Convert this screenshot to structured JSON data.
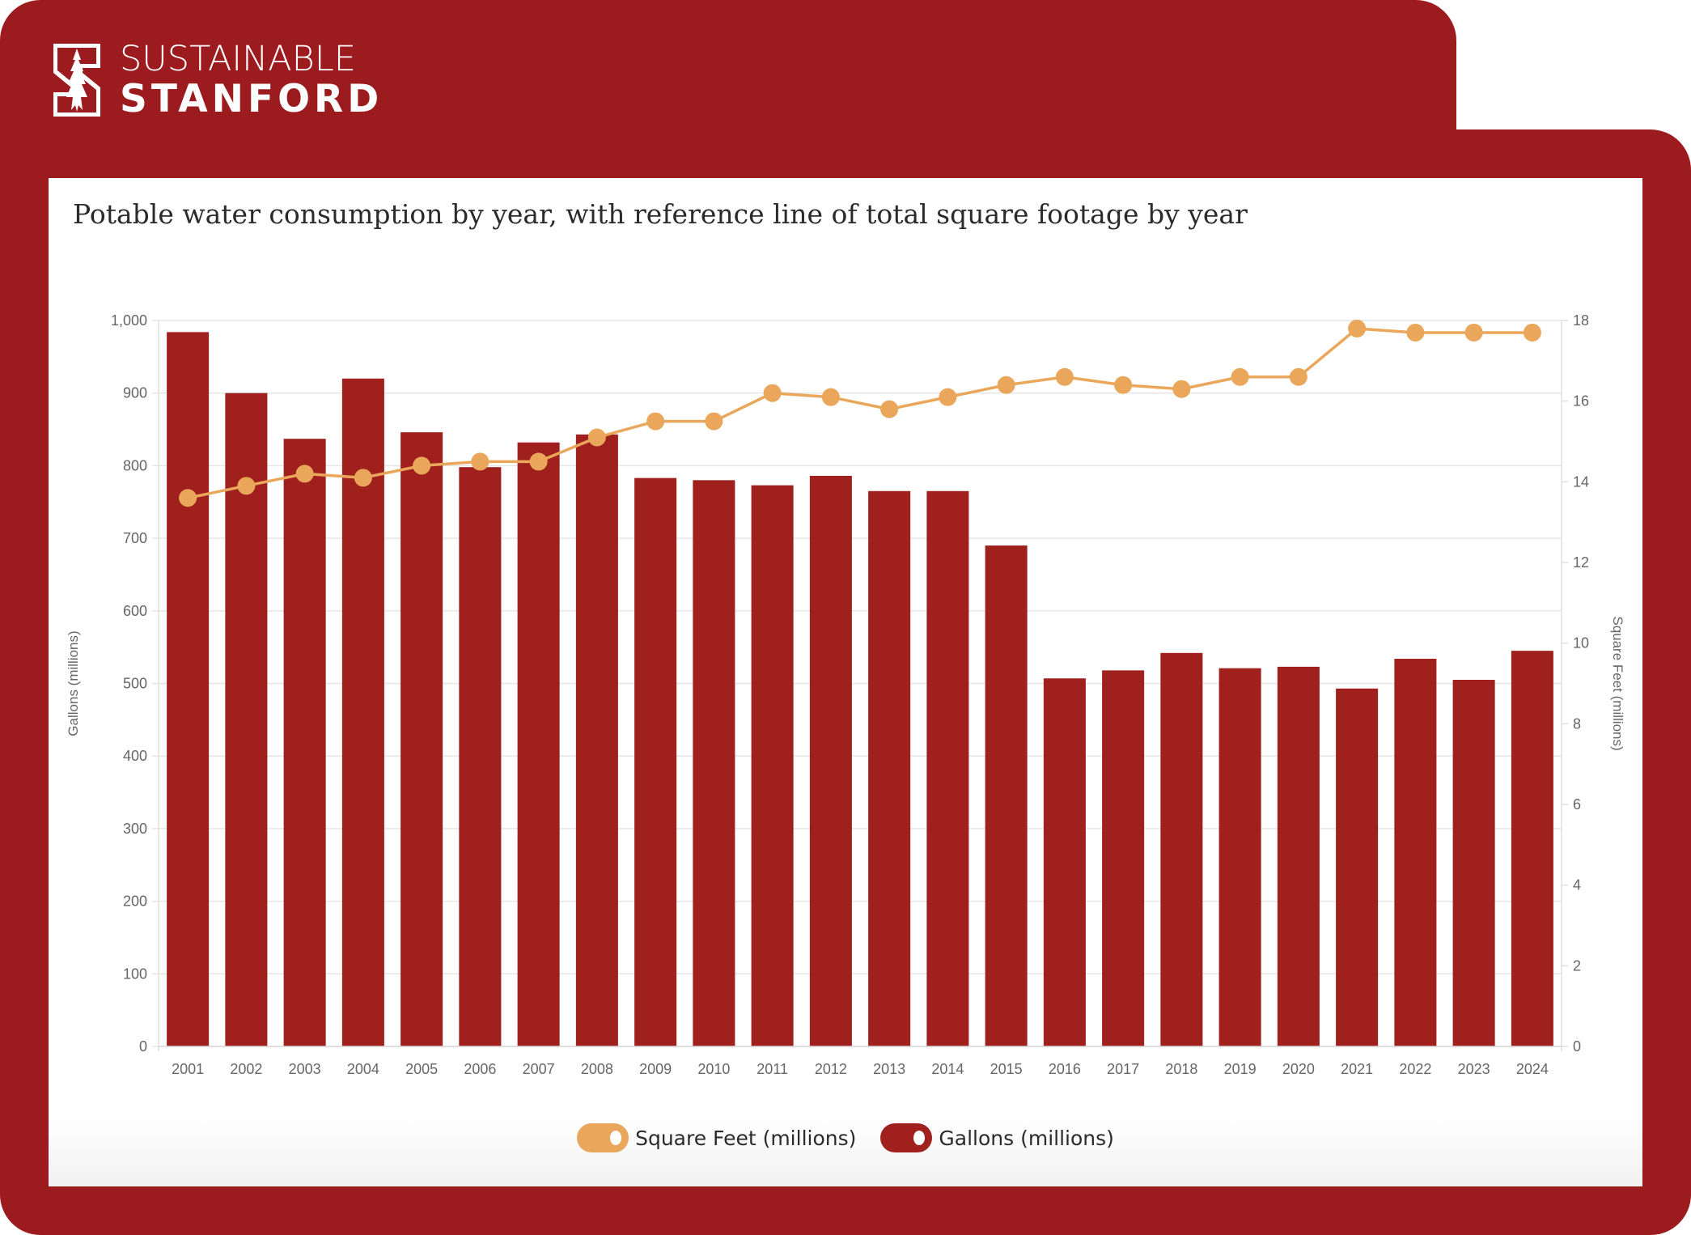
{
  "brand": {
    "line1": "SUSTAINABLE",
    "line2": "STANFORD",
    "logo_icon": "stanford-s-tree-icon",
    "color": "#9b1b1f"
  },
  "chart_data": {
    "type": "bar+line",
    "title": "Potable water consumption by year, with reference line of total square footage by year",
    "categories": [
      "2001",
      "2002",
      "2003",
      "2004",
      "2005",
      "2006",
      "2007",
      "2008",
      "2009",
      "2010",
      "2011",
      "2012",
      "2013",
      "2014",
      "2015",
      "2016",
      "2017",
      "2018",
      "2019",
      "2020",
      "2021",
      "2022",
      "2023",
      "2024"
    ],
    "series": [
      {
        "name": "Gallons (millions)",
        "type": "bar",
        "axis": "left",
        "color": "#a0201e",
        "values": [
          984,
          900,
          837,
          920,
          846,
          798,
          832,
          843,
          783,
          780,
          773,
          786,
          765,
          765,
          690,
          507,
          518,
          542,
          521,
          523,
          493,
          534,
          505,
          545
        ]
      },
      {
        "name": "Square Feet (millions)",
        "type": "line",
        "axis": "right",
        "color": "#eaa65a",
        "values": [
          13.6,
          13.9,
          14.2,
          14.1,
          14.4,
          14.5,
          14.5,
          15.1,
          15.5,
          15.5,
          16.2,
          16.1,
          15.8,
          16.1,
          16.4,
          16.6,
          16.4,
          16.3,
          16.6,
          16.6,
          17.8,
          17.7,
          17.7,
          17.7
        ]
      }
    ],
    "left_axis": {
      "label": "Gallons (millions)",
      "ylim": [
        0,
        1000
      ],
      "ticks": [
        0,
        100,
        200,
        300,
        400,
        500,
        600,
        700,
        800,
        900,
        1000
      ],
      "tick_labels": [
        "0",
        "100",
        "200",
        "300",
        "400",
        "500",
        "600",
        "700",
        "800",
        "900",
        "1,000"
      ]
    },
    "right_axis": {
      "label": "Square Feet (millions)",
      "ylim": [
        0,
        18
      ],
      "ticks": [
        0,
        2,
        4,
        6,
        8,
        10,
        12,
        14,
        16,
        18
      ],
      "tick_labels": [
        "0",
        "2",
        "4",
        "6",
        "8",
        "10",
        "12",
        "14",
        "16",
        "18"
      ]
    },
    "grid": true,
    "legend_position": "bottom-center",
    "legend": [
      {
        "label": "Square Feet (millions)",
        "color": "#eaa65a",
        "enabled": true
      },
      {
        "label": "Gallons (millions)",
        "color": "#a0201e",
        "enabled": true
      }
    ]
  }
}
